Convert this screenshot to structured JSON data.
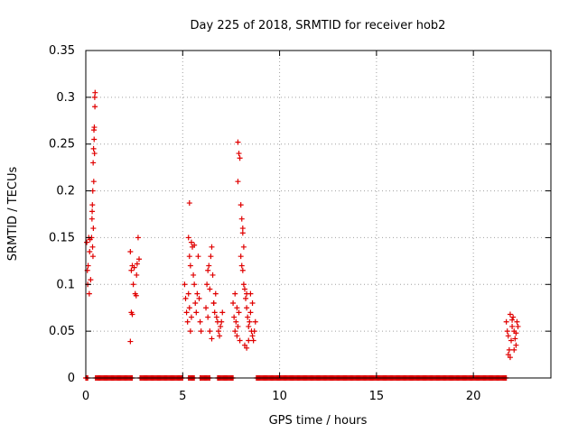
{
  "chart_data": {
    "type": "scatter",
    "title": "Day 225 of 2018, SRMTID for receiver hob2",
    "xlabel": "GPS time / hours",
    "ylabel": "SRMTID / TECUs",
    "xlim": [
      0,
      24
    ],
    "ylim": [
      0,
      0.35
    ],
    "x_ticks": [
      0,
      5,
      10,
      15,
      20
    ],
    "x_tick_labels": [
      "0",
      "5",
      "10",
      "15",
      "20"
    ],
    "y_ticks": [
      0,
      0.05,
      0.1,
      0.15,
      0.2,
      0.25,
      0.3,
      0.35
    ],
    "y_tick_labels": [
      "0",
      "0.05",
      "0.1",
      "0.15",
      "0.2",
      "0.25",
      "0.3",
      "0.35"
    ],
    "grid": true,
    "marker": "+",
    "color": "#e00000",
    "zero_value_intervals": [
      [
        0.0,
        0.1
      ],
      [
        0.5,
        2.4
      ],
      [
        2.8,
        5.0
      ],
      [
        5.3,
        5.6
      ],
      [
        5.9,
        6.4
      ],
      [
        6.8,
        7.6
      ],
      [
        8.8,
        21.7
      ]
    ],
    "series": [
      {
        "name": "SRMTID",
        "points": [
          [
            0.05,
            0.145
          ],
          [
            0.08,
            0.115
          ],
          [
            0.1,
            0.1
          ],
          [
            0.12,
            0.12
          ],
          [
            0.15,
            0.15
          ],
          [
            0.18,
            0.09
          ],
          [
            0.2,
            0.135
          ],
          [
            0.22,
            0.148
          ],
          [
            0.25,
            0.105
          ],
          [
            0.3,
            0.15
          ],
          [
            0.32,
            0.17
          ],
          [
            0.34,
            0.185
          ],
          [
            0.36,
            0.2
          ],
          [
            0.38,
            0.23
          ],
          [
            0.4,
            0.245
          ],
          [
            0.42,
            0.265
          ],
          [
            0.44,
            0.268
          ],
          [
            0.46,
            0.3
          ],
          [
            0.48,
            0.305
          ],
          [
            0.47,
            0.29
          ],
          [
            0.35,
            0.14
          ],
          [
            0.37,
            0.13
          ],
          [
            0.39,
            0.16
          ],
          [
            0.41,
            0.21
          ],
          [
            0.43,
            0.255
          ],
          [
            0.33,
            0.178
          ],
          [
            0.45,
            0.24
          ],
          [
            2.3,
            0.135
          ],
          [
            2.35,
            0.115
          ],
          [
            2.4,
            0.12
          ],
          [
            2.45,
            0.1
          ],
          [
            2.5,
            0.118
          ],
          [
            2.55,
            0.09
          ],
          [
            2.6,
            0.088
          ],
          [
            2.65,
            0.122
          ],
          [
            2.7,
            0.15
          ],
          [
            2.75,
            0.127
          ],
          [
            2.35,
            0.07
          ],
          [
            2.4,
            0.068
          ],
          [
            2.3,
            0.039
          ],
          [
            2.62,
            0.11
          ],
          [
            5.1,
            0.1
          ],
          [
            5.15,
            0.085
          ],
          [
            5.2,
            0.07
          ],
          [
            5.25,
            0.06
          ],
          [
            5.3,
            0.09
          ],
          [
            5.35,
            0.075
          ],
          [
            5.4,
            0.05
          ],
          [
            5.45,
            0.065
          ],
          [
            5.3,
            0.15
          ],
          [
            5.35,
            0.13
          ],
          [
            5.4,
            0.12
          ],
          [
            5.5,
            0.14
          ],
          [
            5.55,
            0.11
          ],
          [
            5.6,
            0.1
          ],
          [
            5.65,
            0.08
          ],
          [
            5.7,
            0.07
          ],
          [
            5.75,
            0.09
          ],
          [
            5.8,
            0.13
          ],
          [
            5.85,
            0.085
          ],
          [
            5.9,
            0.06
          ],
          [
            5.95,
            0.05
          ],
          [
            5.35,
            0.187
          ],
          [
            5.45,
            0.145
          ],
          [
            5.6,
            0.142
          ],
          [
            6.2,
            0.075
          ],
          [
            6.25,
            0.1
          ],
          [
            6.3,
            0.115
          ],
          [
            6.35,
            0.12
          ],
          [
            6.4,
            0.095
          ],
          [
            6.45,
            0.13
          ],
          [
            6.5,
            0.14
          ],
          [
            6.55,
            0.11
          ],
          [
            6.6,
            0.08
          ],
          [
            6.65,
            0.07
          ],
          [
            6.7,
            0.09
          ],
          [
            6.75,
            0.065
          ],
          [
            6.8,
            0.06
          ],
          [
            6.85,
            0.05
          ],
          [
            6.9,
            0.045
          ],
          [
            6.95,
            0.055
          ],
          [
            7.0,
            0.06
          ],
          [
            6.3,
            0.065
          ],
          [
            6.4,
            0.05
          ],
          [
            6.5,
            0.042
          ],
          [
            6.6,
            0.08
          ],
          [
            7.05,
            0.07
          ],
          [
            7.6,
            0.08
          ],
          [
            7.65,
            0.065
          ],
          [
            7.7,
            0.05
          ],
          [
            7.75,
            0.06
          ],
          [
            7.8,
            0.045
          ],
          [
            7.85,
            0.055
          ],
          [
            7.9,
            0.07
          ],
          [
            7.95,
            0.04
          ],
          [
            7.8,
            0.075
          ],
          [
            7.7,
            0.09
          ],
          [
            7.85,
            0.252
          ],
          [
            7.9,
            0.24
          ],
          [
            7.95,
            0.235
          ],
          [
            7.85,
            0.21
          ],
          [
            8.0,
            0.185
          ],
          [
            8.05,
            0.17
          ],
          [
            8.1,
            0.155
          ],
          [
            8.15,
            0.14
          ],
          [
            8.0,
            0.13
          ],
          [
            8.05,
            0.12
          ],
          [
            8.1,
            0.115
          ],
          [
            8.15,
            0.1
          ],
          [
            8.2,
            0.095
          ],
          [
            8.25,
            0.085
          ],
          [
            8.3,
            0.075
          ],
          [
            8.35,
            0.065
          ],
          [
            8.4,
            0.055
          ],
          [
            8.45,
            0.06
          ],
          [
            8.5,
            0.07
          ],
          [
            8.55,
            0.05
          ],
          [
            8.6,
            0.045
          ],
          [
            8.65,
            0.04
          ],
          [
            8.7,
            0.05
          ],
          [
            8.75,
            0.06
          ],
          [
            8.2,
            0.035
          ],
          [
            8.3,
            0.032
          ],
          [
            8.4,
            0.04
          ],
          [
            8.5,
            0.09
          ],
          [
            8.6,
            0.08
          ],
          [
            8.1,
            0.16
          ],
          [
            8.3,
            0.09
          ],
          [
            21.7,
            0.06
          ],
          [
            21.75,
            0.05
          ],
          [
            21.8,
            0.045
          ],
          [
            21.85,
            0.03
          ],
          [
            21.9,
            0.022
          ],
          [
            21.95,
            0.04
          ],
          [
            22.0,
            0.055
          ],
          [
            22.05,
            0.065
          ],
          [
            22.1,
            0.05
          ],
          [
            22.15,
            0.042
          ],
          [
            22.2,
            0.035
          ],
          [
            22.25,
            0.06
          ],
          [
            22.3,
            0.055
          ],
          [
            21.8,
            0.025
          ],
          [
            22.0,
            0.062
          ],
          [
            22.1,
            0.03
          ],
          [
            22.2,
            0.048
          ],
          [
            21.9,
            0.068
          ]
        ]
      }
    ]
  }
}
